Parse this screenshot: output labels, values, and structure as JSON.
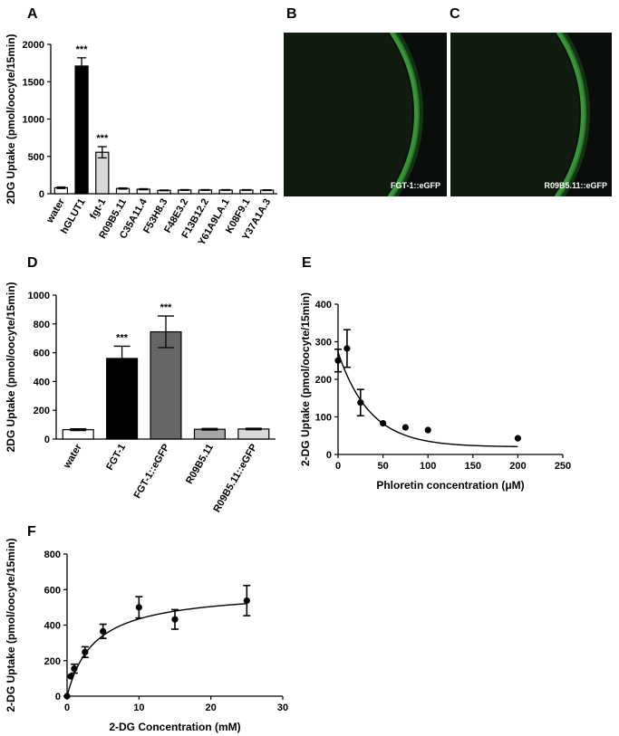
{
  "panel_letters": {
    "A": "A",
    "B": "B",
    "C": "C",
    "D": "D",
    "E": "E",
    "F": "F"
  },
  "micrographs": [
    {
      "label": "FGT-1::eGFP",
      "background": "#0a0e0a",
      "ring": "#3fae3f"
    },
    {
      "label": "R09B5.11::eGFP",
      "background": "#0a0e0a",
      "ring": "#3fae3f"
    }
  ],
  "chart_data": [
    {
      "panel": "A",
      "type": "bar",
      "ylabel": "2DG Uptake (pmol/oocyte/15min)",
      "ylim": [
        0,
        2000
      ],
      "yticks": [
        0,
        500,
        1000,
        1500,
        2000
      ],
      "categories": [
        "water",
        "hGLUT1",
        "fgt-1",
        "R09B5.11",
        "C35A11.4",
        "F53H8.3",
        "F48E3.2",
        "F13B12.2",
        "Y61A9LA.1",
        "K08F9.1",
        "Y37A1A.3"
      ],
      "values": [
        80,
        1710,
        555,
        70,
        60,
        45,
        50,
        50,
        50,
        50,
        48
      ],
      "errors": [
        10,
        110,
        75,
        8,
        7,
        5,
        5,
        5,
        5,
        5,
        5
      ],
      "colors": [
        "#ffffff",
        "#000000",
        "#d9d9d9",
        "#ffffff",
        "#ffffff",
        "#ffffff",
        "#ffffff",
        "#ffffff",
        "#ffffff",
        "#ffffff",
        "#ffffff"
      ],
      "significance": [
        "",
        "***",
        "***",
        "",
        "",
        "",
        "",
        "",
        "",
        "",
        ""
      ]
    },
    {
      "panel": "D",
      "type": "bar",
      "ylabel": "2DG Uptake (pmol/oocyte/15min)",
      "ylim": [
        0,
        1000
      ],
      "yticks": [
        0,
        200,
        400,
        600,
        800,
        1000
      ],
      "categories": [
        "water",
        "FGT-1",
        "FGT-1::eGFP",
        "R09B5.11",
        "R09B5.11::eGFP"
      ],
      "values": [
        65,
        560,
        745,
        68,
        70
      ],
      "errors": [
        6,
        85,
        110,
        6,
        5
      ],
      "colors": [
        "#ffffff",
        "#000000",
        "#666666",
        "#a6a6a6",
        "#d9d9d9"
      ],
      "significance": [
        "",
        "***",
        "***",
        "",
        ""
      ]
    },
    {
      "panel": "E",
      "type": "scatter",
      "xlabel": "Phloretin concentration (μM)",
      "ylabel": "2-DG  Uptake (pmol/oocyte/15min)",
      "xlim": [
        0,
        250
      ],
      "ylim": [
        0,
        400
      ],
      "xticks": [
        0,
        50,
        100,
        150,
        200,
        250
      ],
      "yticks": [
        0,
        100,
        200,
        300,
        400
      ],
      "points": [
        {
          "x": 0,
          "y": 250,
          "err": 30
        },
        {
          "x": 10,
          "y": 282,
          "err": 50
        },
        {
          "x": 25,
          "y": 138,
          "err": 35
        },
        {
          "x": 50,
          "y": 83,
          "err": 0
        },
        {
          "x": 75,
          "y": 72,
          "err": 0
        },
        {
          "x": 100,
          "y": 65,
          "err": 0
        },
        {
          "x": 200,
          "y": 43,
          "err": 0
        }
      ],
      "fit": {
        "model": "one-phase-decay",
        "y0": 272,
        "plateau": 20,
        "k": 0.028
      }
    },
    {
      "panel": "F",
      "type": "scatter",
      "xlabel": "2-DG Concentration (mM)",
      "ylabel": "2-DG  Uptake (pmol/oocyte/15min)",
      "xlim": [
        0,
        30
      ],
      "ylim": [
        0,
        800
      ],
      "xticks": [
        0,
        10,
        20,
        30
      ],
      "yticks": [
        0,
        200,
        400,
        600,
        800
      ],
      "points": [
        {
          "x": 0,
          "y": 0,
          "err": 0
        },
        {
          "x": 0.5,
          "y": 112,
          "err": 0
        },
        {
          "x": 1,
          "y": 155,
          "err": 25
        },
        {
          "x": 2.5,
          "y": 248,
          "err": 30
        },
        {
          "x": 5,
          "y": 365,
          "err": 40
        },
        {
          "x": 10,
          "y": 500,
          "err": 60
        },
        {
          "x": 15,
          "y": 432,
          "err": 55
        },
        {
          "x": 25,
          "y": 538,
          "err": 85
        }
      ],
      "fit": {
        "model": "michaelis-menten",
        "vmax": 600,
        "km": 3.8
      }
    }
  ]
}
